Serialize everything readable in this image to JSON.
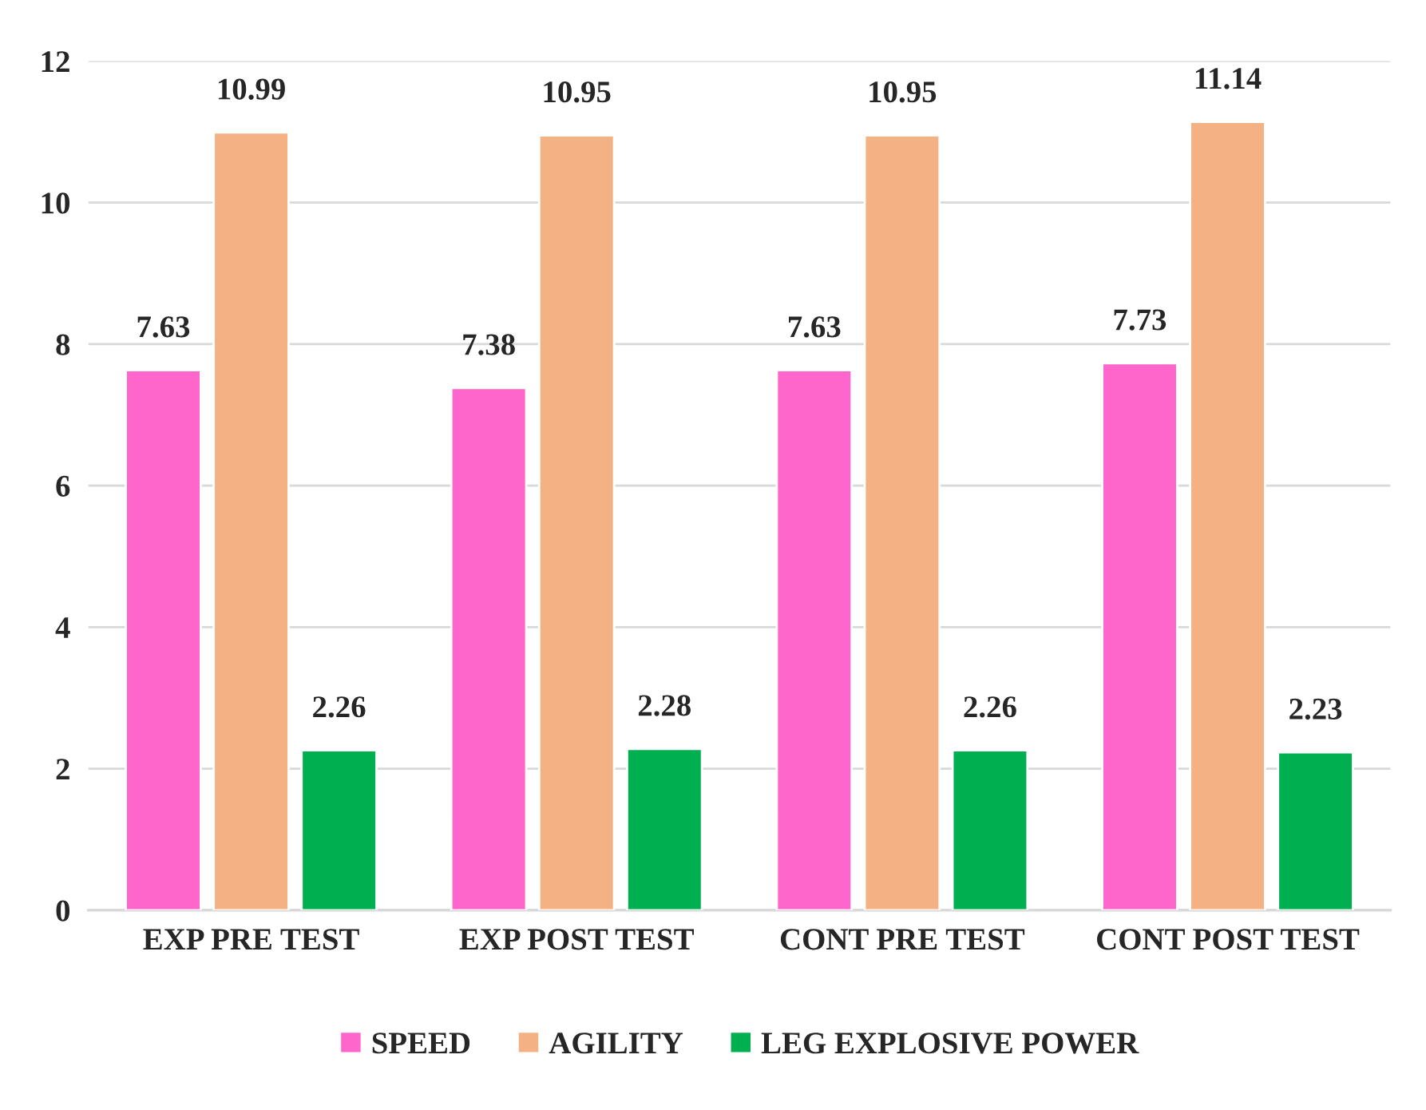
{
  "chart_data": {
    "type": "bar",
    "categories": [
      "EXP PRE TEST",
      "EXP POST TEST",
      "CONT PRE TEST",
      "CONT POST TEST"
    ],
    "series": [
      {
        "name": "SPEED",
        "color": "#ff66cc",
        "values": [
          7.63,
          7.38,
          7.63,
          7.73
        ]
      },
      {
        "name": "AGILITY",
        "color": "#f4b183",
        "values": [
          10.99,
          10.95,
          10.95,
          11.14
        ]
      },
      {
        "name": "LEG EXPLOSIVE POWER",
        "color": "#00b050",
        "values": [
          2.26,
          2.28,
          2.26,
          2.23
        ]
      }
    ],
    "ylim": [
      0,
      12
    ],
    "yticks": [
      0,
      2,
      4,
      6,
      8,
      10,
      12
    ],
    "grid": "y",
    "legend": "bottom",
    "data_labels": true
  }
}
